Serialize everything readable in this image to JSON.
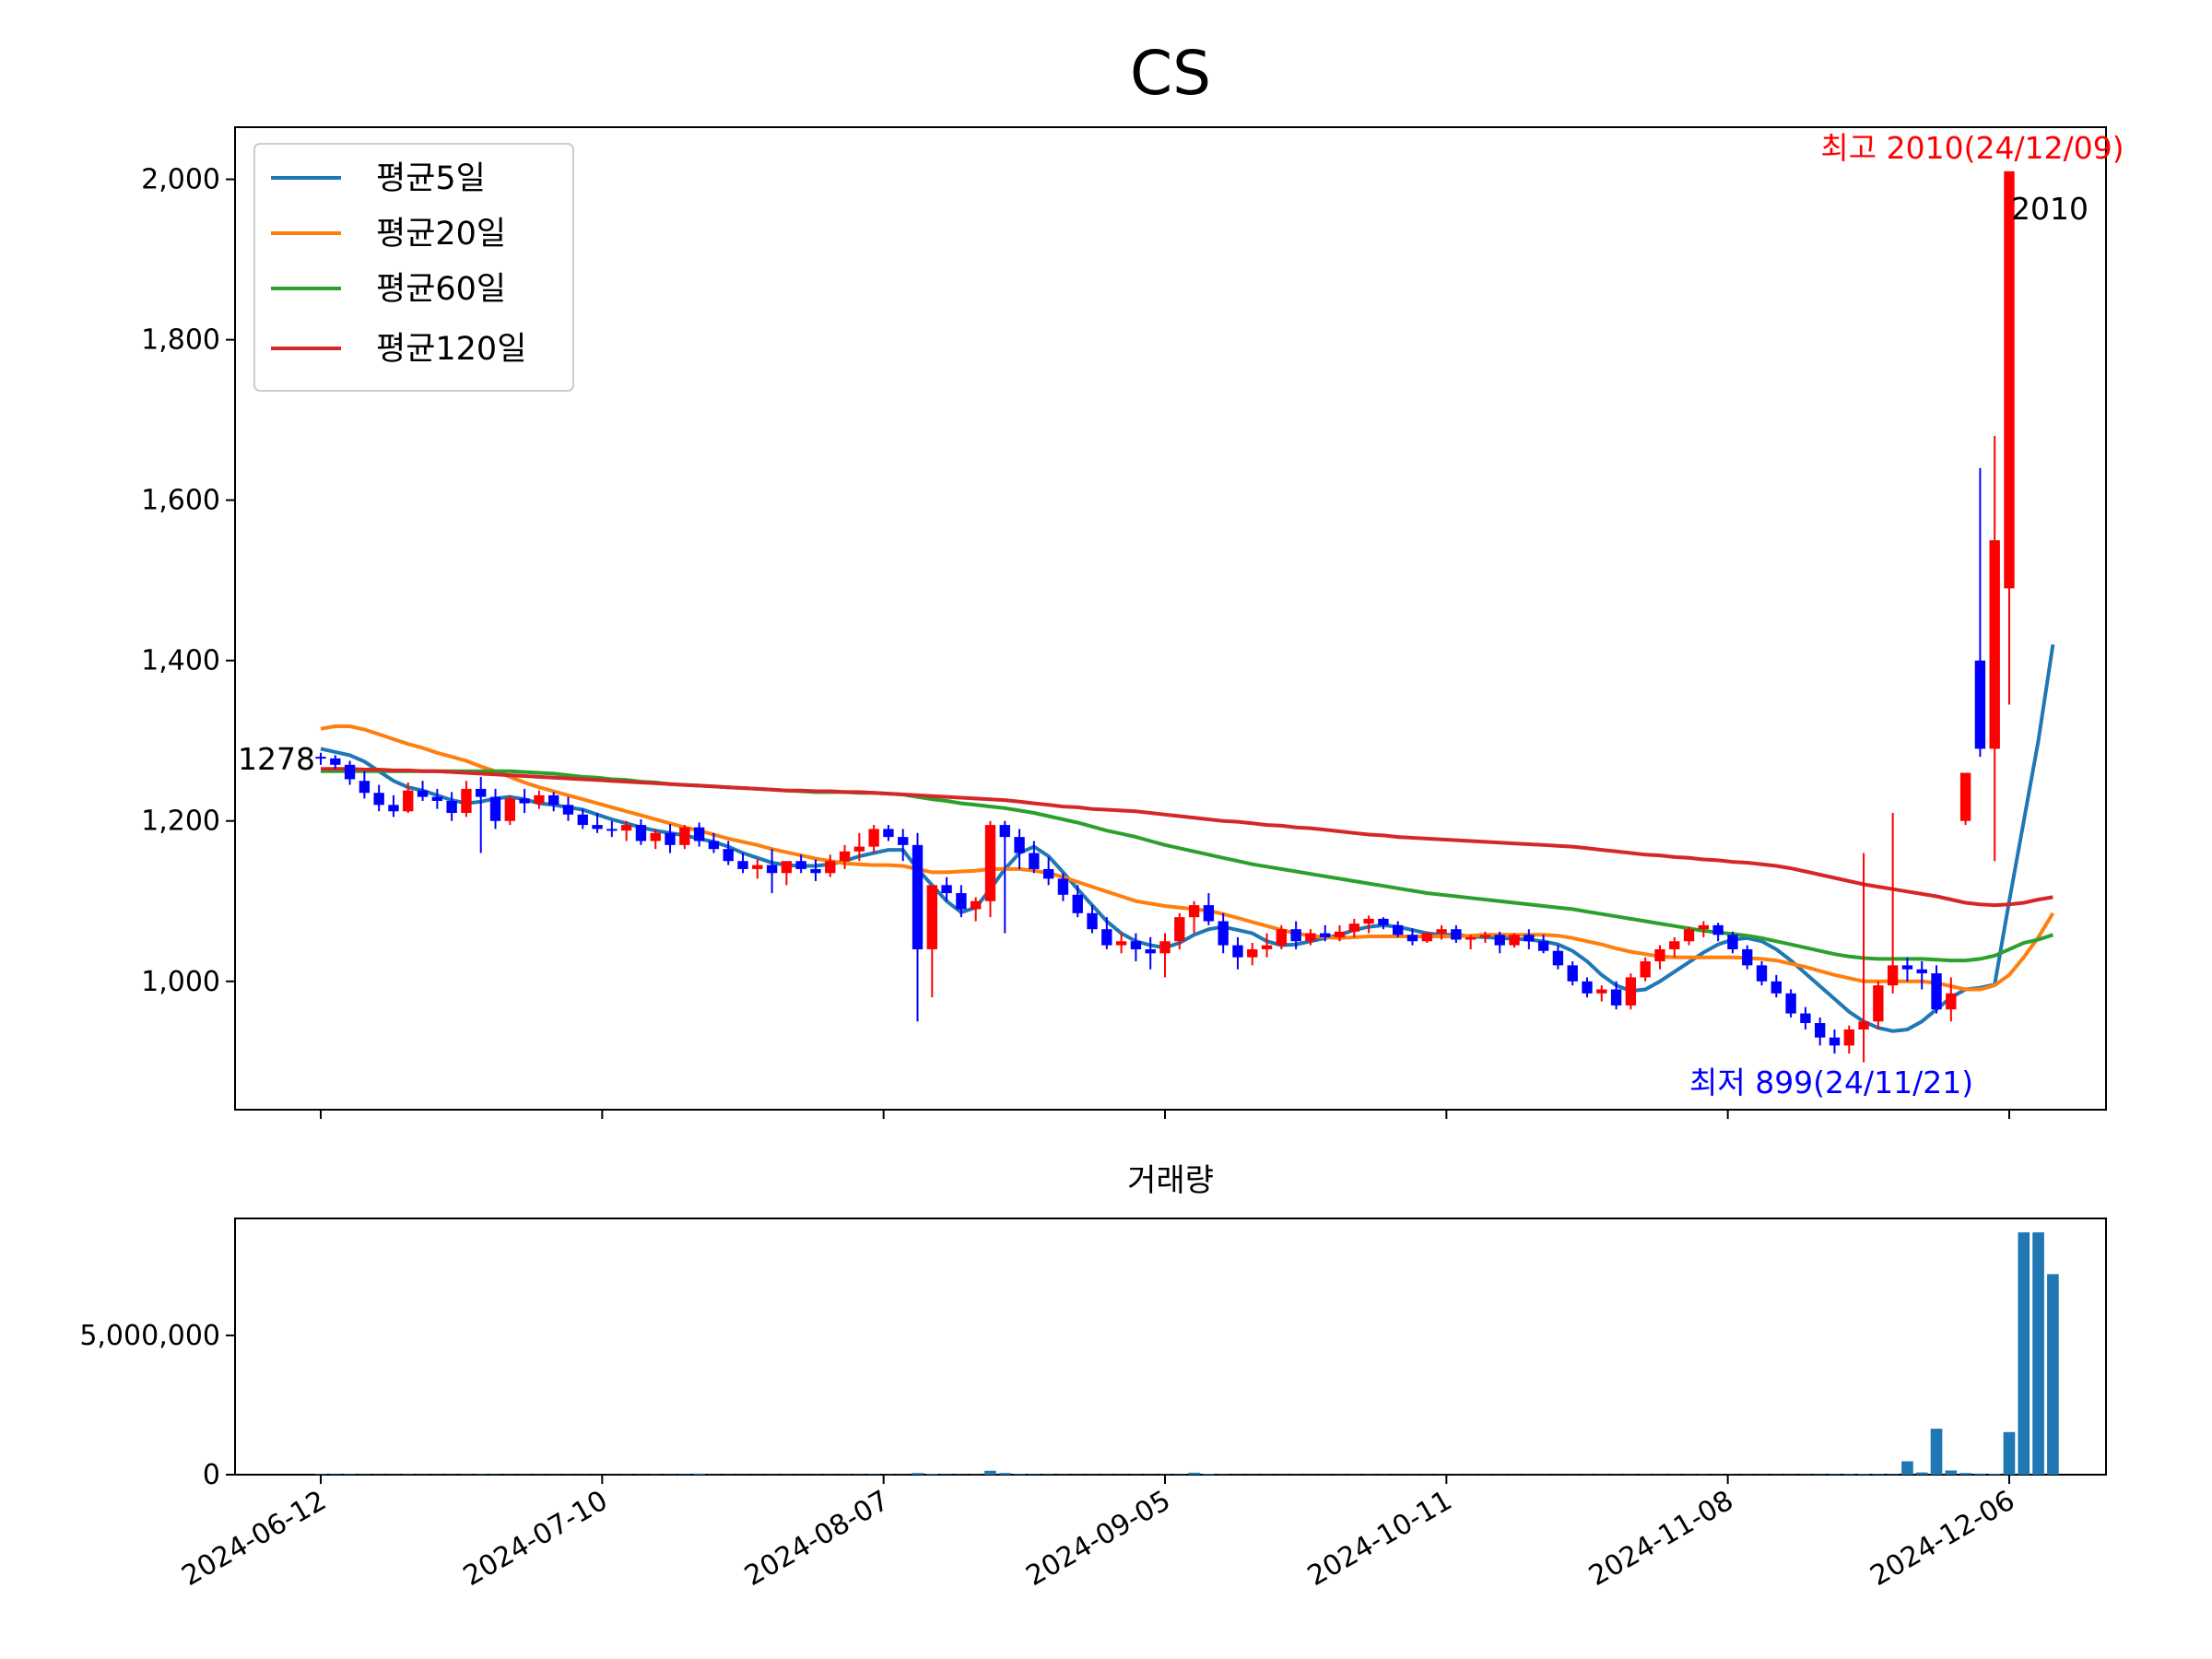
{
  "chart_data": [
    {
      "type": "candlestick",
      "title": "CS",
      "ylim": [
        840,
        2065
      ],
      "yticks": [
        1000,
        1200,
        1400,
        1600,
        1800,
        2000
      ],
      "ytick_labels": [
        "1,000",
        "1,200",
        "1,400",
        "1,600",
        "1,800",
        "2,000"
      ],
      "grid": false,
      "legend_position": "top-left",
      "colors": {
        "up": "#ff0000",
        "down": "#0000ff",
        "ma5": "#1f77b4",
        "ma20": "#ff7f0e",
        "ma60": "#2ca02c",
        "ma120": "#d62728"
      },
      "annotations": {
        "first_close": "1278",
        "last_high": "2010",
        "highest": "최고 2010(24/12/09)",
        "lowest": "최저 899(24/11/21)"
      },
      "ohlc": [
        [
          1280,
          1285,
          1270,
          1278
        ],
        [
          1278,
          1282,
          1265,
          1270
        ],
        [
          1270,
          1275,
          1245,
          1252
        ],
        [
          1250,
          1262,
          1228,
          1235
        ],
        [
          1235,
          1245,
          1212,
          1220
        ],
        [
          1220,
          1232,
          1205,
          1212
        ],
        [
          1212,
          1248,
          1210,
          1238
        ],
        [
          1238,
          1250,
          1225,
          1230
        ],
        [
          1230,
          1240,
          1215,
          1225
        ],
        [
          1225,
          1236,
          1200,
          1210
        ],
        [
          1210,
          1250,
          1205,
          1240
        ],
        [
          1240,
          1255,
          1160,
          1230
        ],
        [
          1230,
          1240,
          1190,
          1200
        ],
        [
          1200,
          1232,
          1195,
          1228
        ],
        [
          1228,
          1240,
          1210,
          1222
        ],
        [
          1222,
          1238,
          1215,
          1232
        ],
        [
          1232,
          1236,
          1212,
          1220
        ],
        [
          1220,
          1230,
          1200,
          1208
        ],
        [
          1208,
          1215,
          1190,
          1195
        ],
        [
          1195,
          1210,
          1185,
          1190
        ],
        [
          1190,
          1200,
          1180,
          1188
        ],
        [
          1188,
          1200,
          1175,
          1195
        ],
        [
          1195,
          1202,
          1170,
          1175
        ],
        [
          1175,
          1190,
          1165,
          1185
        ],
        [
          1185,
          1196,
          1160,
          1170
        ],
        [
          1170,
          1195,
          1165,
          1192
        ],
        [
          1192,
          1198,
          1168,
          1175
        ],
        [
          1175,
          1185,
          1160,
          1165
        ],
        [
          1165,
          1175,
          1145,
          1150
        ],
        [
          1150,
          1160,
          1135,
          1140
        ],
        [
          1140,
          1152,
          1128,
          1145
        ],
        [
          1145,
          1165,
          1110,
          1135
        ],
        [
          1135,
          1148,
          1120,
          1150
        ],
        [
          1150,
          1158,
          1135,
          1140
        ],
        [
          1140,
          1152,
          1125,
          1135
        ],
        [
          1135,
          1158,
          1130,
          1150
        ],
        [
          1150,
          1170,
          1140,
          1162
        ],
        [
          1162,
          1185,
          1150,
          1168
        ],
        [
          1168,
          1195,
          1160,
          1190
        ],
        [
          1190,
          1195,
          1175,
          1180
        ],
        [
          1180,
          1190,
          1150,
          1170
        ],
        [
          1170,
          1185,
          950,
          1040
        ],
        [
          1040,
          1110,
          980,
          1120
        ],
        [
          1120,
          1130,
          1100,
          1110
        ],
        [
          1110,
          1120,
          1080,
          1090
        ],
        [
          1090,
          1105,
          1075,
          1100
        ],
        [
          1100,
          1200,
          1080,
          1195
        ],
        [
          1195,
          1200,
          1060,
          1180
        ],
        [
          1180,
          1190,
          1140,
          1160
        ],
        [
          1160,
          1175,
          1135,
          1140
        ],
        [
          1140,
          1155,
          1120,
          1128
        ],
        [
          1128,
          1135,
          1100,
          1108
        ],
        [
          1108,
          1120,
          1080,
          1085
        ],
        [
          1085,
          1095,
          1060,
          1065
        ],
        [
          1065,
          1080,
          1040,
          1045
        ],
        [
          1045,
          1060,
          1035,
          1050
        ],
        [
          1050,
          1060,
          1025,
          1040
        ],
        [
          1040,
          1055,
          1015,
          1035
        ],
        [
          1035,
          1060,
          1005,
          1050
        ],
        [
          1050,
          1085,
          1040,
          1080
        ],
        [
          1080,
          1100,
          1060,
          1095
        ],
        [
          1095,
          1110,
          1070,
          1075
        ],
        [
          1075,
          1085,
          1035,
          1045
        ],
        [
          1045,
          1055,
          1015,
          1030
        ],
        [
          1030,
          1048,
          1020,
          1040
        ],
        [
          1040,
          1060,
          1030,
          1045
        ],
        [
          1045,
          1070,
          1040,
          1065
        ],
        [
          1065,
          1075,
          1040,
          1050
        ],
        [
          1050,
          1065,
          1045,
          1060
        ],
        [
          1060,
          1070,
          1050,
          1055
        ],
        [
          1055,
          1070,
          1050,
          1062
        ],
        [
          1062,
          1078,
          1055,
          1072
        ],
        [
          1072,
          1082,
          1060,
          1078
        ],
        [
          1078,
          1080,
          1065,
          1070
        ],
        [
          1070,
          1075,
          1055,
          1058
        ],
        [
          1058,
          1066,
          1045,
          1050
        ],
        [
          1050,
          1062,
          1048,
          1060
        ],
        [
          1060,
          1070,
          1052,
          1065
        ],
        [
          1065,
          1070,
          1048,
          1052
        ],
        [
          1052,
          1058,
          1040,
          1055
        ],
        [
          1055,
          1062,
          1048,
          1058
        ],
        [
          1058,
          1062,
          1035,
          1045
        ],
        [
          1045,
          1060,
          1042,
          1058
        ],
        [
          1058,
          1065,
          1040,
          1050
        ],
        [
          1050,
          1058,
          1035,
          1038
        ],
        [
          1038,
          1045,
          1015,
          1020
        ],
        [
          1020,
          1025,
          995,
          1000
        ],
        [
          1000,
          1005,
          980,
          985
        ],
        [
          985,
          995,
          975,
          990
        ],
        [
          990,
          1000,
          965,
          970
        ],
        [
          970,
          1010,
          965,
          1005
        ],
        [
          1005,
          1030,
          1000,
          1025
        ],
        [
          1025,
          1045,
          1015,
          1040
        ],
        [
          1040,
          1055,
          1030,
          1050
        ],
        [
          1050,
          1068,
          1045,
          1065
        ],
        [
          1065,
          1075,
          1055,
          1070
        ],
        [
          1070,
          1073,
          1050,
          1058
        ],
        [
          1058,
          1062,
          1035,
          1040
        ],
        [
          1040,
          1045,
          1015,
          1020
        ],
        [
          1020,
          1025,
          995,
          1000
        ],
        [
          1000,
          1008,
          980,
          985
        ],
        [
          985,
          990,
          955,
          960
        ],
        [
          960,
          968,
          940,
          948
        ],
        [
          948,
          955,
          920,
          930
        ],
        [
          930,
          940,
          910,
          920
        ],
        [
          920,
          945,
          910,
          940
        ],
        [
          940,
          1160,
          899,
          950
        ],
        [
          950,
          1000,
          940,
          995
        ],
        [
          995,
          1210,
          985,
          1020
        ],
        [
          1020,
          1030,
          1000,
          1015
        ],
        [
          1015,
          1025,
          990,
          1010
        ],
        [
          1010,
          1020,
          960,
          965
        ],
        [
          965,
          1005,
          950,
          985
        ],
        [
          1200,
          1260,
          1195,
          1260
        ],
        [
          1400,
          1640,
          1280,
          1290
        ],
        [
          1290,
          1680,
          1150,
          1550
        ],
        [
          1490,
          2010,
          1345,
          2010
        ]
      ],
      "ma5": [
        1290,
        1286,
        1282,
        1274,
        1262,
        1250,
        1242,
        1238,
        1232,
        1226,
        1222,
        1224,
        1228,
        1230,
        1227,
        1222,
        1220,
        1217,
        1214,
        1208,
        1202,
        1197,
        1192,
        1188,
        1185,
        1182,
        1178,
        1174,
        1168,
        1160,
        1154,
        1148,
        1145,
        1144,
        1144,
        1146,
        1150,
        1156,
        1160,
        1164,
        1164,
        1140,
        1120,
        1100,
        1086,
        1092,
        1115,
        1140,
        1160,
        1168,
        1156,
        1136,
        1115,
        1095,
        1075,
        1060,
        1050,
        1045,
        1042,
        1048,
        1058,
        1065,
        1068,
        1064,
        1060,
        1050,
        1045,
        1046,
        1050,
        1054,
        1058,
        1064,
        1068,
        1070,
        1068,
        1064,
        1060,
        1058,
        1058,
        1056,
        1055,
        1054,
        1053,
        1052,
        1050,
        1046,
        1038,
        1025,
        1008,
        995,
        988,
        990,
        1000,
        1012,
        1024,
        1036,
        1046,
        1052,
        1054,
        1050,
        1040,
        1026,
        1010,
        994,
        978,
        962,
        950,
        942,
        938,
        940,
        950,
        965,
        980,
        990,
        992,
        996,
        1100,
        1200,
        1300,
        1420
      ],
      "ma20": [
        1315,
        1318,
        1318,
        1314,
        1308,
        1302,
        1296,
        1291,
        1285,
        1280,
        1275,
        1268,
        1262,
        1255,
        1248,
        1242,
        1237,
        1232,
        1227,
        1222,
        1217,
        1212,
        1207,
        1202,
        1197,
        1192,
        1188,
        1183,
        1178,
        1174,
        1170,
        1165,
        1161,
        1157,
        1153,
        1150,
        1147,
        1146,
        1145,
        1145,
        1144,
        1140,
        1136,
        1136,
        1137,
        1138,
        1140,
        1140,
        1140,
        1138,
        1135,
        1130,
        1124,
        1118,
        1112,
        1106,
        1100,
        1097,
        1094,
        1092,
        1090,
        1088,
        1084,
        1079,
        1074,
        1069,
        1064,
        1060,
        1057,
        1055,
        1054,
        1055,
        1056,
        1056,
        1056,
        1056,
        1056,
        1056,
        1056,
        1057,
        1058,
        1058,
        1058,
        1058,
        1058,
        1057,
        1054,
        1050,
        1046,
        1041,
        1037,
        1034,
        1031,
        1030,
        1030,
        1030,
        1030,
        1030,
        1029,
        1028,
        1026,
        1022,
        1018,
        1013,
        1008,
        1004,
        1000,
        1000,
        1000,
        1000,
        1000,
        998,
        994,
        990,
        990,
        995,
        1008,
        1030,
        1055,
        1085
      ],
      "ma60": [
        1262,
        1262,
        1262,
        1262,
        1262,
        1262,
        1262,
        1262,
        1262,
        1262,
        1262,
        1262,
        1262,
        1262,
        1261,
        1260,
        1259,
        1257,
        1255,
        1254,
        1252,
        1251,
        1249,
        1248,
        1246,
        1245,
        1244,
        1243,
        1242,
        1241,
        1240,
        1239,
        1238,
        1237,
        1236,
        1236,
        1236,
        1235,
        1235,
        1234,
        1233,
        1230,
        1227,
        1225,
        1222,
        1220,
        1218,
        1216,
        1213,
        1210,
        1206,
        1202,
        1198,
        1193,
        1188,
        1184,
        1180,
        1175,
        1170,
        1166,
        1162,
        1158,
        1154,
        1150,
        1146,
        1143,
        1140,
        1137,
        1134,
        1131,
        1128,
        1125,
        1122,
        1119,
        1116,
        1113,
        1110,
        1108,
        1106,
        1104,
        1102,
        1100,
        1098,
        1096,
        1094,
        1092,
        1090,
        1087,
        1084,
        1081,
        1078,
        1075,
        1072,
        1069,
        1066,
        1063,
        1061,
        1059,
        1057,
        1054,
        1050,
        1046,
        1042,
        1038,
        1034,
        1031,
        1029,
        1028,
        1028,
        1028,
        1028,
        1027,
        1026,
        1026,
        1028,
        1032,
        1040,
        1048,
        1052,
        1058
      ],
      "ma120": [
        1265,
        1265,
        1265,
        1264,
        1264,
        1263,
        1263,
        1262,
        1262,
        1261,
        1260,
        1259,
        1258,
        1257,
        1256,
        1255,
        1254,
        1253,
        1252,
        1251,
        1250,
        1249,
        1248,
        1247,
        1246,
        1245,
        1244,
        1243,
        1242,
        1241,
        1240,
        1239,
        1238,
        1238,
        1237,
        1237,
        1236,
        1236,
        1235,
        1234,
        1233,
        1232,
        1231,
        1230,
        1229,
        1228,
        1227,
        1226,
        1224,
        1222,
        1220,
        1218,
        1217,
        1215,
        1214,
        1213,
        1212,
        1210,
        1208,
        1206,
        1204,
        1202,
        1200,
        1199,
        1197,
        1195,
        1194,
        1192,
        1191,
        1189,
        1187,
        1185,
        1183,
        1182,
        1180,
        1179,
        1178,
        1177,
        1176,
        1175,
        1174,
        1173,
        1172,
        1171,
        1170,
        1169,
        1168,
        1166,
        1164,
        1162,
        1160,
        1158,
        1157,
        1155,
        1154,
        1152,
        1151,
        1149,
        1148,
        1146,
        1144,
        1141,
        1137,
        1133,
        1129,
        1125,
        1121,
        1118,
        1115,
        1112,
        1109,
        1106,
        1102,
        1098,
        1096,
        1095,
        1096,
        1098,
        1102,
        1105
      ],
      "series": [
        {
          "name": "평균5일",
          "key": "ma5"
        },
        {
          "name": "평균20일",
          "key": "ma20"
        },
        {
          "name": "평균60일",
          "key": "ma60"
        },
        {
          "name": "평균120일",
          "key": "ma120"
        }
      ]
    },
    {
      "type": "bar",
      "title": "거래량",
      "ylim": [
        0,
        9200000
      ],
      "yticks": [
        0,
        5000000
      ],
      "ytick_labels": [
        "0",
        "5,000,000"
      ],
      "xtick_labels": [
        "2024-06-12",
        "2024-07-10",
        "2024-08-07",
        "2024-09-05",
        "2024-10-11",
        "2024-11-08",
        "2024-12-06"
      ],
      "values": [
        20000,
        15000,
        18000,
        12000,
        10000,
        9000,
        14000,
        11000,
        9000,
        8000,
        12000,
        15000,
        10000,
        9000,
        8000,
        9000,
        8000,
        7000,
        7000,
        6000,
        6000,
        9000,
        8000,
        10000,
        12000,
        15000,
        40000,
        10000,
        9000,
        8000,
        7000,
        9000,
        8000,
        7000,
        8000,
        9000,
        10000,
        12000,
        15000,
        11000,
        9000,
        60000,
        30000,
        15000,
        12000,
        10000,
        140000,
        60000,
        25000,
        18000,
        15000,
        12000,
        10000,
        9000,
        9000,
        8000,
        9000,
        10000,
        12000,
        15000,
        70000,
        30000,
        15000,
        10000,
        9000,
        9000,
        8000,
        8000,
        7000,
        7000,
        8000,
        9000,
        9000,
        8000,
        7000,
        7000,
        7000,
        8000,
        7000,
        7000,
        7000,
        7000,
        7000,
        7000,
        7000,
        6000,
        7000,
        8000,
        9000,
        8000,
        10000,
        12000,
        10000,
        9000,
        9000,
        10000,
        9000,
        8000,
        8000,
        8000,
        9000,
        10000,
        12000,
        15000,
        20000,
        25000,
        30000,
        25000,
        20000,
        480000,
        80000,
        1650000,
        150000,
        60000,
        40000,
        30000,
        1530000,
        8700000,
        8700000,
        7200000
      ]
    }
  ]
}
